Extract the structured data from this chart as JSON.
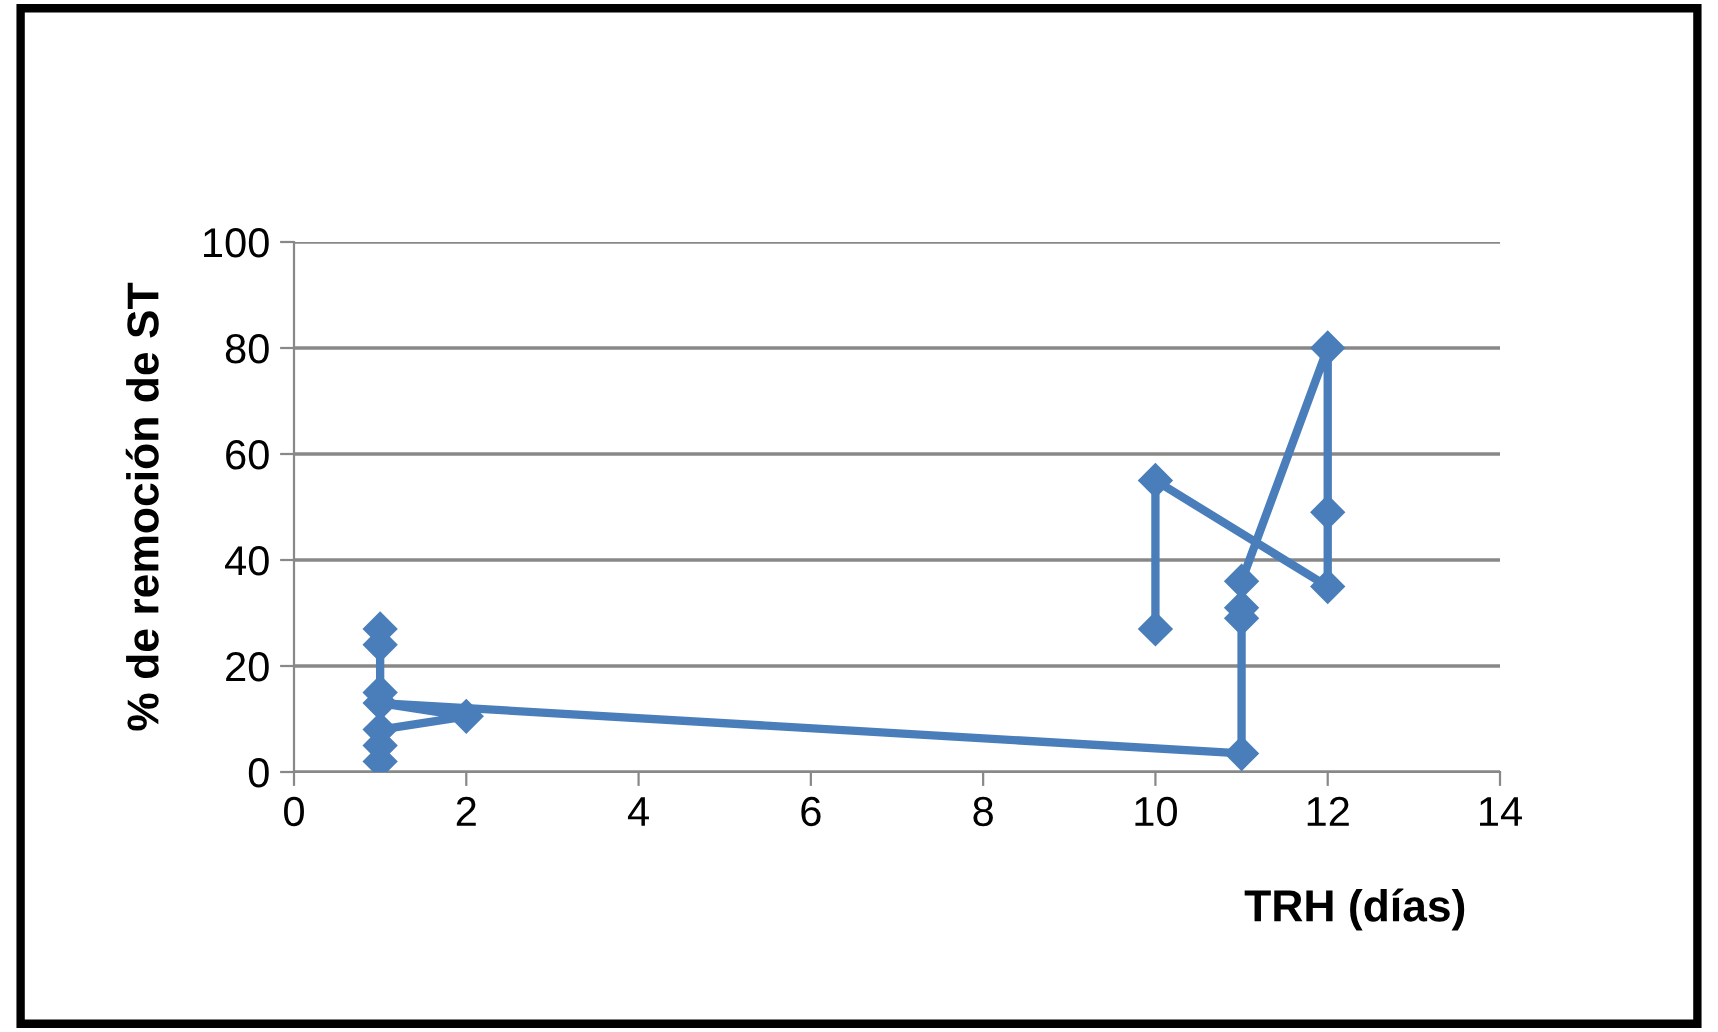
{
  "chart_data": {
    "type": "line",
    "xlabel": "TRH (días)",
    "ylabel": "% de remoción de ST",
    "x": [
      1,
      1,
      1,
      1,
      1,
      1,
      2,
      1,
      11,
      11,
      11,
      11,
      12,
      12,
      12,
      10,
      10
    ],
    "series": [
      {
        "color": "#4a7ebb",
        "values": [
          27,
          24,
          15,
          2,
          5,
          8,
          10.5,
          13,
          3.5,
          29,
          31,
          36,
          80,
          49,
          35,
          55,
          27
        ]
      }
    ],
    "xlim": [
      0,
      14
    ],
    "xticks": [
      0,
      2,
      4,
      6,
      8,
      10,
      12,
      14
    ],
    "ylim": [
      0,
      100
    ],
    "yticks": [
      0,
      20,
      40,
      60,
      80,
      100
    ],
    "grid": "y",
    "marker": "diamond",
    "line_style": "solid",
    "legend": false
  }
}
